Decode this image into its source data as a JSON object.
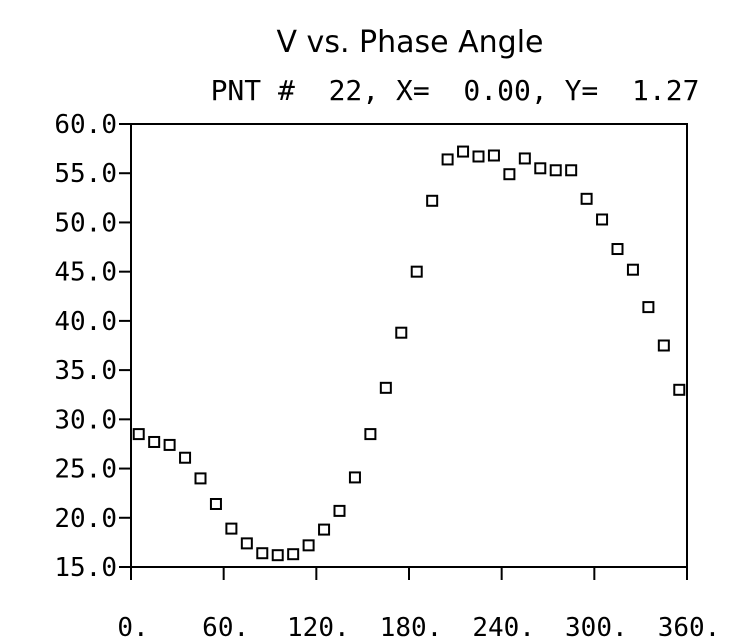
{
  "chart_data": {
    "type": "scatter",
    "title": "V vs. Phase Angle",
    "subtitle": "PNT #  22, X=  0.00, Y=  1.27",
    "xlabel": "",
    "ylabel": "",
    "xlim": [
      0,
      360
    ],
    "ylim": [
      15,
      60
    ],
    "grid": false,
    "marker": "square",
    "x_ticks": [
      "0.",
      "60.",
      "120.",
      "180.",
      "240.",
      "300.",
      "360."
    ],
    "y_ticks": [
      "15.0",
      "20.0",
      "25.0",
      "30.0",
      "35.0",
      "40.0",
      "45.0",
      "50.0",
      "55.0",
      "60.0"
    ],
    "series": [
      {
        "points": [
          [
            5,
            28.5
          ],
          [
            15,
            27.7
          ],
          [
            25,
            27.4
          ],
          [
            35,
            26.1
          ],
          [
            45,
            24.0
          ],
          [
            55,
            21.4
          ],
          [
            65,
            18.9
          ],
          [
            75,
            17.4
          ],
          [
            85,
            16.4
          ],
          [
            95,
            16.2
          ],
          [
            105,
            16.3
          ],
          [
            115,
            17.2
          ],
          [
            125,
            18.8
          ],
          [
            135,
            20.7
          ],
          [
            145,
            24.1
          ],
          [
            155,
            28.5
          ],
          [
            165,
            33.2
          ],
          [
            175,
            38.8
          ],
          [
            185,
            45.0
          ],
          [
            195,
            52.2
          ],
          [
            205,
            56.4
          ],
          [
            215,
            57.2
          ],
          [
            225,
            56.7
          ],
          [
            235,
            56.8
          ],
          [
            245,
            54.9
          ],
          [
            255,
            56.5
          ],
          [
            265,
            55.5
          ],
          [
            275,
            55.3
          ],
          [
            285,
            55.3
          ],
          [
            295,
            52.4
          ],
          [
            305,
            50.3
          ],
          [
            315,
            47.3
          ],
          [
            325,
            45.2
          ],
          [
            335,
            41.4
          ],
          [
            345,
            37.5
          ],
          [
            355,
            33.0
          ]
        ]
      }
    ]
  }
}
